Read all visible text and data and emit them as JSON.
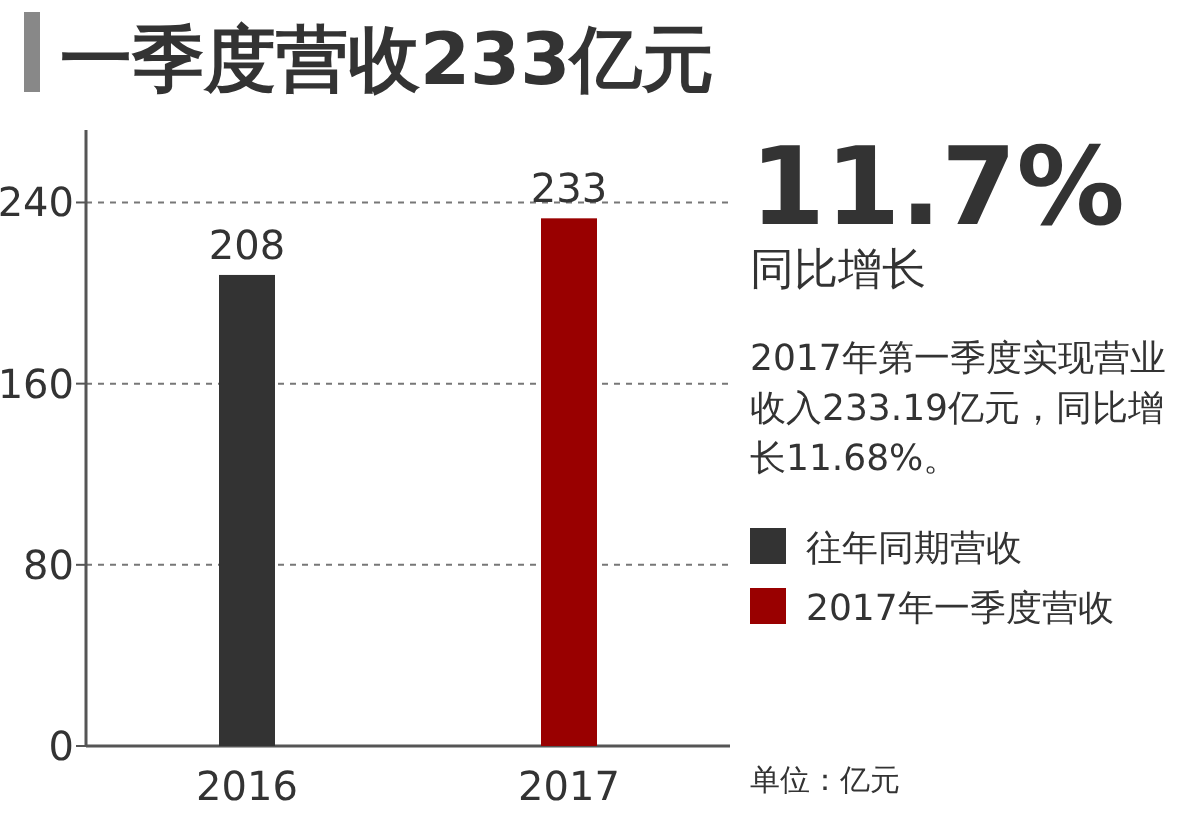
{
  "chart_data": {
    "type": "bar",
    "title": "一季度营收233亿元",
    "categories": [
      "2016",
      "2017"
    ],
    "series": [
      {
        "name": "往年同期营收",
        "color": "#333333",
        "values": [
          208,
          null
        ]
      },
      {
        "name": "2017年一季度营收",
        "color": "#990000",
        "values": [
          null,
          233
        ]
      }
    ],
    "ylim": [
      0,
      272
    ],
    "yticks": [
      0,
      80,
      160,
      240
    ],
    "grid": "y",
    "data_labels": true,
    "legend": "bottom right",
    "annotations": [
      "11.7%",
      "同比增长",
      "2017年第一季度实现营业收入233.19亿元，同比增长11.68%。",
      "单位：亿元"
    ]
  }
}
